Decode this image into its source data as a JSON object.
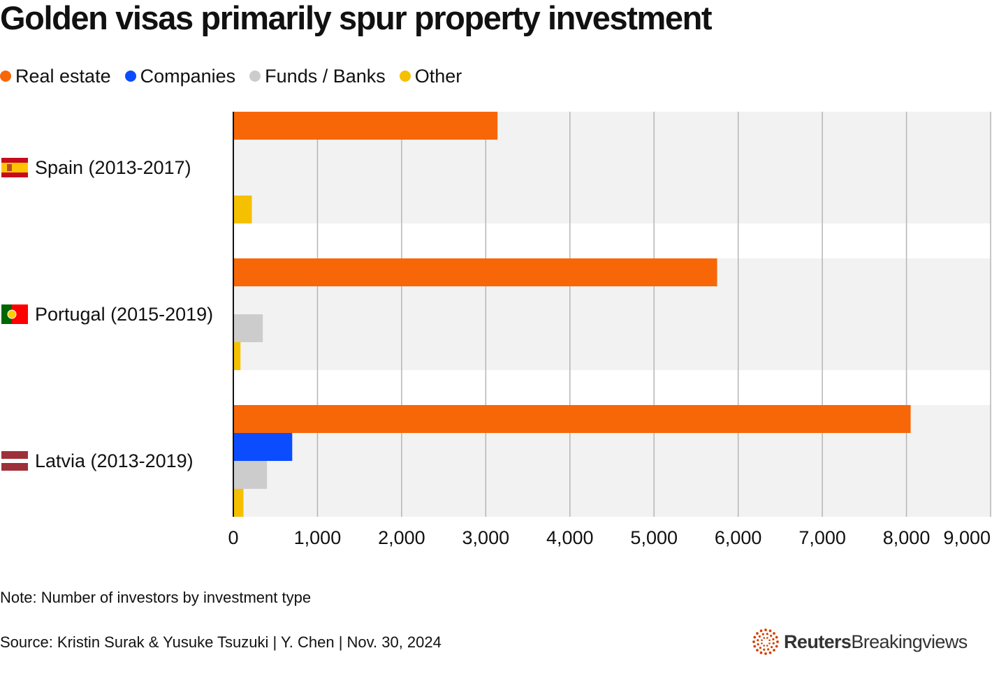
{
  "chart_data": {
    "type": "bar",
    "orientation": "horizontal",
    "title": "Golden visas primarily spur property investment",
    "categories": [
      "Spain (2013-2017)",
      "Portugal (2015-2019)",
      "Latvia (2013-2019)"
    ],
    "series": [
      {
        "name": "Real estate",
        "color": "#f76707",
        "values": [
          3140,
          5750,
          8050
        ]
      },
      {
        "name": "Companies",
        "color": "#0b4cff",
        "values": [
          0,
          0,
          700
        ]
      },
      {
        "name": "Funds / Banks",
        "color": "#cccccc",
        "values": [
          0,
          350,
          400
        ]
      },
      {
        "name": "Other",
        "color": "#f5c000",
        "values": [
          220,
          85,
          120
        ]
      }
    ],
    "xlim": [
      0,
      9000
    ],
    "xticks": [
      0,
      1000,
      2000,
      3000,
      4000,
      5000,
      6000,
      7000,
      8000,
      9000
    ],
    "xtick_labels": [
      "0",
      "1,000",
      "2,000",
      "3,000",
      "4,000",
      "5,000",
      "6,000",
      "7,000",
      "8,000",
      "9,000"
    ],
    "grid": true,
    "legend_position": "top-left"
  },
  "flags": [
    "spain-flag",
    "portugal-flag",
    "latvia-flag"
  ],
  "note": "Note: Number of investors by investment type",
  "source": "Source: Kristin Surak & Yusuke Tsuzuki | Y. Chen | Nov. 30, 2024",
  "brand": {
    "bold": "Reuters",
    "light": "Breakingviews",
    "color": "#d64000"
  }
}
